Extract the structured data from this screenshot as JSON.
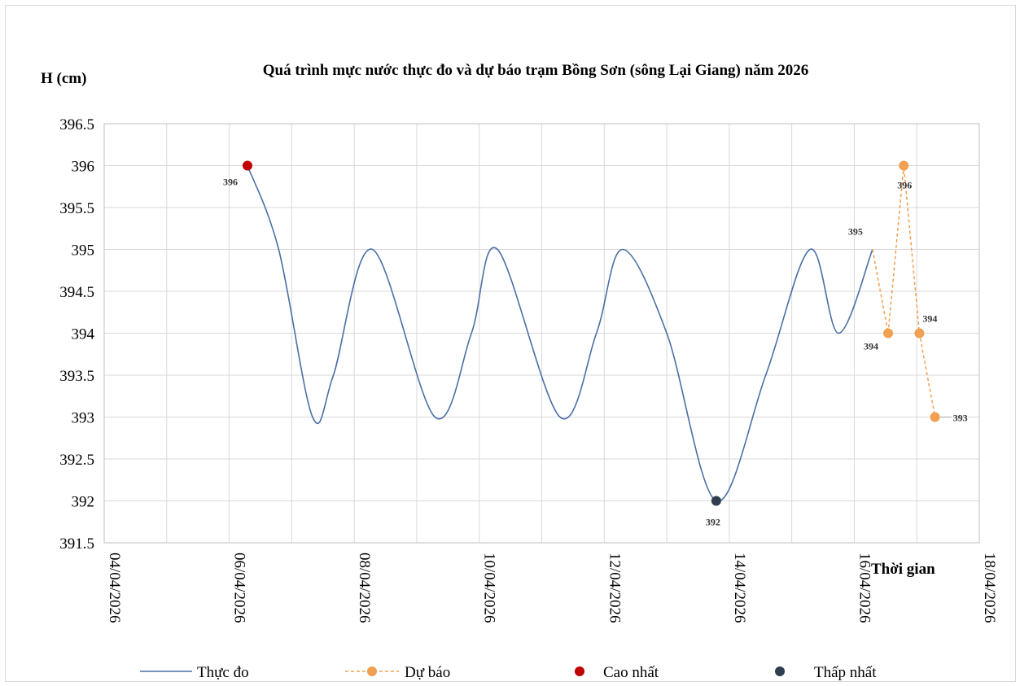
{
  "chart_data": {
    "type": "line",
    "title": "Quá trình mực nước thực đo và dự báo trạm  Bồng Sơn (sông Lại Giang) năm  2026",
    "ylabel": "H (cm)",
    "xlabel": "Thời gian",
    "ylim": [
      391.5,
      396.5
    ],
    "yticks": [
      "391.5",
      "392",
      "392.5",
      "393",
      "393.5",
      "394",
      "394.5",
      "395",
      "395.5",
      "396",
      "396.5"
    ],
    "xlim": [
      "2026-04-04",
      "2026-04-18"
    ],
    "xticks": [
      "04/04/2026",
      "06/04/2026",
      "08/04/2026",
      "10/04/2026",
      "12/04/2026",
      "14/04/2026",
      "16/04/2026",
      "18/04/2026"
    ],
    "grid": true,
    "legend_position": "bottom",
    "series": [
      {
        "name": "Thực đo",
        "color": "#4a6fa5",
        "style": "solid",
        "x": [
          "06/04/2026 07:00",
          "06/04/2026 19:00",
          "07/04/2026 08:00",
          "07/04/2026 16:00",
          "08/04/2026 07:00",
          "09/04/2026 07:00",
          "09/04/2026 21:00",
          "10/04/2026 07:00",
          "11/04/2026 07:00",
          "11/04/2026 21:00",
          "12/04/2026 07:00",
          "13/04/2026 00:00",
          "13/04/2026 19:00",
          "14/04/2026 14:00",
          "15/04/2026 07:00",
          "15/04/2026 18:00",
          "16/04/2026 07:00"
        ],
        "y": [
          396,
          395,
          393,
          393.5,
          395,
          393,
          394,
          395,
          393,
          394,
          395,
          394,
          392,
          393.5,
          395,
          394,
          395
        ]
      },
      {
        "name": "Dự báo",
        "color": "#f0a050",
        "style": "dashed",
        "x": [
          "16/04/2026 07:00",
          "16/04/2026 13:00",
          "16/04/2026 19:00",
          "17/04/2026 01:00",
          "17/04/2026 07:00"
        ],
        "y": [
          395,
          394,
          396,
          394,
          393
        ],
        "labels": [
          "395",
          "394",
          "396",
          "394",
          "393"
        ]
      },
      {
        "name": "Cao nhất",
        "color": "#c00000",
        "x": [
          "06/04/2026 07:00"
        ],
        "y": [
          396
        ],
        "labels": [
          "396"
        ]
      },
      {
        "name": "Thấp nhất",
        "color": "#2f3e50",
        "x": [
          "13/04/2026 19:00"
        ],
        "y": [
          392
        ],
        "labels": [
          "392"
        ]
      }
    ]
  }
}
